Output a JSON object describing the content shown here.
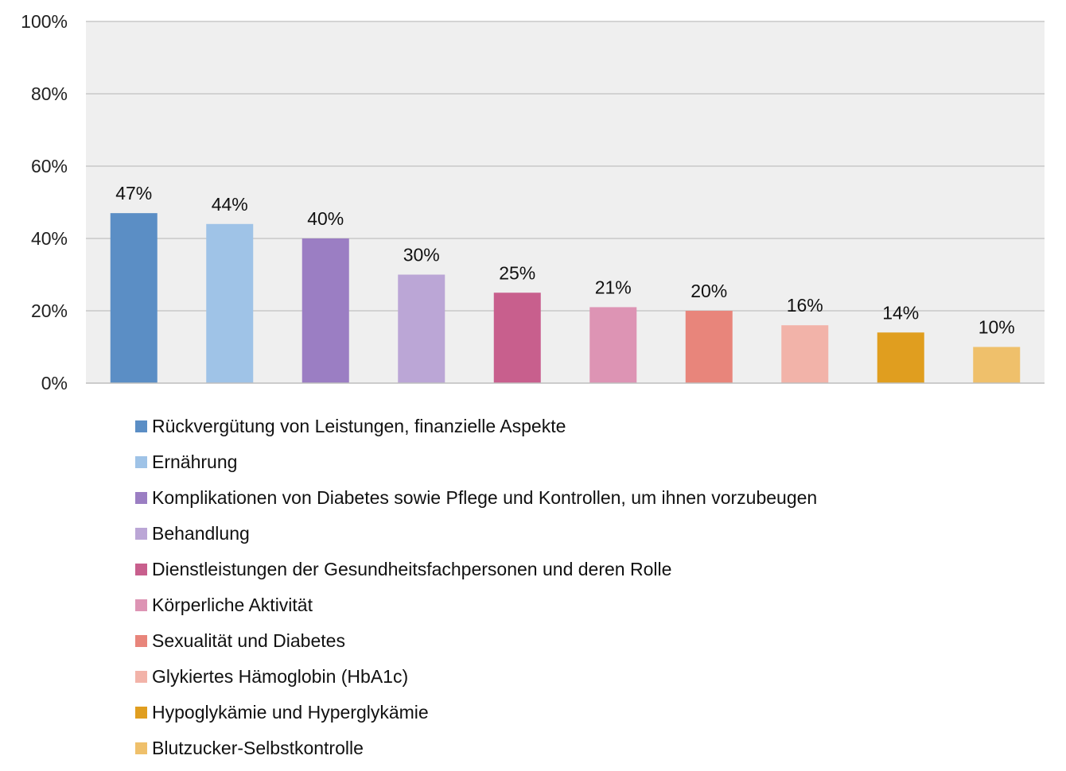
{
  "chart_data": {
    "type": "bar",
    "title": "",
    "xlabel": "",
    "ylabel": "",
    "ylim": [
      0,
      100
    ],
    "y_ticks": [
      "0%",
      "20%",
      "40%",
      "60%",
      "80%",
      "100%"
    ],
    "grid": true,
    "legend_position": "bottom",
    "plot_background": "#efefef",
    "gridline_color": "#c8c8c8",
    "bars": [
      {
        "label": "Rückvergütung von Leistungen, finanzielle Aspekte",
        "value": 47,
        "value_label": "47%",
        "color": "#5b8ec5"
      },
      {
        "label": "Ernährung",
        "value": 44,
        "value_label": "44%",
        "color": "#9fc3e7"
      },
      {
        "label": "Komplikationen von Diabetes sowie Pflege und Kontrollen, um ihnen vorzubeugen",
        "value": 40,
        "value_label": "40%",
        "color": "#9b7ec3"
      },
      {
        "label": "Behandlung",
        "value": 30,
        "value_label": "30%",
        "color": "#bba6d6"
      },
      {
        "label": "Dienstleistungen der Gesundheitsfachpersonen und deren Rolle",
        "value": 25,
        "value_label": "25%",
        "color": "#c85f8d"
      },
      {
        "label": "Körperliche Aktivität",
        "value": 21,
        "value_label": "21%",
        "color": "#dd94b4"
      },
      {
        "label": "Sexualität und Diabetes",
        "value": 20,
        "value_label": "20%",
        "color": "#e8857b"
      },
      {
        "label": "Glykiertes Hämoglobin (HbA1c)",
        "value": 16,
        "value_label": "16%",
        "color": "#f2b3a9"
      },
      {
        "label": "Hypoglykämie und Hyperglykämie",
        "value": 14,
        "value_label": "14%",
        "color": "#e09e1f"
      },
      {
        "label": "Blutzucker-Selbstkontrolle",
        "value": 10,
        "value_label": "10%",
        "color": "#efc06b"
      }
    ]
  }
}
